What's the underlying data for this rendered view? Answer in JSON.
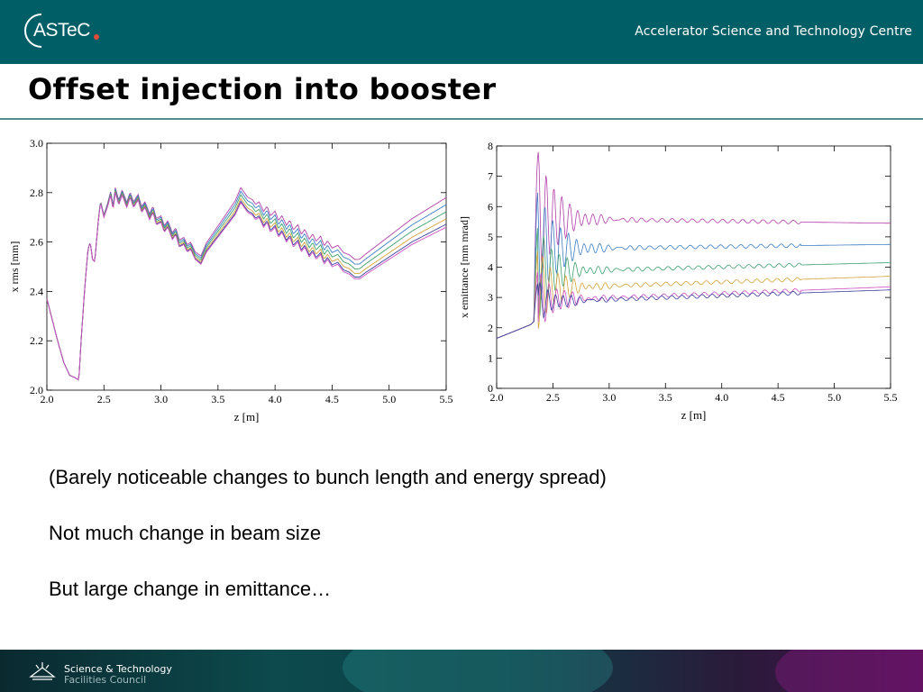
{
  "header": {
    "logo_text": "ASTeC",
    "org_name": "Accelerator Science and Technology Centre"
  },
  "slide": {
    "title": "Offset injection into booster",
    "bullets": [
      "(Barely noticeable changes to bunch length and energy spread)",
      "Not much change in beam size",
      "But large change in emittance…"
    ]
  },
  "footer": {
    "line1": "Science & Technology",
    "line2": "Facilities Council"
  },
  "chart_data": [
    {
      "type": "line",
      "title": "",
      "xlabel": "z [m]",
      "ylabel": "x rms [mm]",
      "xlim": [
        2.0,
        5.5
      ],
      "ylim": [
        2.0,
        3.0
      ],
      "xticks": [
        "2.0",
        "2.5",
        "3.0",
        "3.5",
        "4.0",
        "4.5",
        "5.0",
        "5.5"
      ],
      "yticks": [
        "2.0",
        "2.2",
        "2.4",
        "2.6",
        "2.8",
        "3.0"
      ],
      "grid": false,
      "base_curve": {
        "x": [
          2.0,
          2.05,
          2.1,
          2.15,
          2.2,
          2.25,
          2.28,
          2.3,
          2.33,
          2.36,
          2.38,
          2.4,
          2.42,
          2.45,
          2.47,
          2.5,
          2.53,
          2.56,
          2.58,
          2.6,
          2.63,
          2.66,
          2.7,
          2.73,
          2.76,
          2.8,
          2.83,
          2.86,
          2.9,
          2.93,
          2.96,
          3.0,
          3.03,
          3.06,
          3.1,
          3.13,
          3.16,
          3.2,
          3.23,
          3.26,
          3.3,
          3.35,
          3.4,
          3.45,
          3.5,
          3.55,
          3.6,
          3.65,
          3.7,
          3.73,
          3.76,
          3.8,
          3.83,
          3.86,
          3.9,
          3.93,
          3.96,
          4.0,
          4.03,
          4.06,
          4.1,
          4.13,
          4.16,
          4.2,
          4.23,
          4.26,
          4.3,
          4.33,
          4.36,
          4.4,
          4.43,
          4.46,
          4.5,
          4.55,
          4.6,
          4.65,
          4.7,
          4.74,
          4.8,
          5.0,
          5.2,
          5.5
        ],
        "y": [
          2.37,
          2.28,
          2.19,
          2.11,
          2.06,
          2.05,
          2.04,
          2.2,
          2.4,
          2.57,
          2.6,
          2.53,
          2.52,
          2.68,
          2.76,
          2.7,
          2.74,
          2.79,
          2.73,
          2.8,
          2.75,
          2.79,
          2.74,
          2.78,
          2.74,
          2.77,
          2.72,
          2.74,
          2.69,
          2.72,
          2.67,
          2.68,
          2.64,
          2.66,
          2.61,
          2.63,
          2.58,
          2.59,
          2.56,
          2.57,
          2.53,
          2.51,
          2.56,
          2.59,
          2.62,
          2.65,
          2.68,
          2.71,
          2.76,
          2.74,
          2.72,
          2.71,
          2.69,
          2.7,
          2.66,
          2.68,
          2.64,
          2.66,
          2.62,
          2.64,
          2.6,
          2.62,
          2.58,
          2.6,
          2.56,
          2.58,
          2.54,
          2.56,
          2.53,
          2.55,
          2.51,
          2.53,
          2.5,
          2.51,
          2.48,
          2.47,
          2.45,
          2.45,
          2.47,
          2.53,
          2.59,
          2.66
        ]
      },
      "series": [
        {
          "color": "#b33fa8",
          "offset": 0.0,
          "spread": 1.0
        },
        {
          "color": "#3d7ec5",
          "offset": 0.0,
          "spread": 0.76
        },
        {
          "color": "#3ea06f",
          "offset": 0.0,
          "spread": 0.52
        },
        {
          "color": "#d4a23c",
          "offset": 0.0,
          "spread": 0.28
        },
        {
          "color": "#3a3f9c",
          "offset": 0.0,
          "spread": 0.1
        },
        {
          "color": "#cc4fc0",
          "offset": 0.0,
          "spread": 0.0
        }
      ],
      "spread_curve": {
        "x": [
          2.0,
          2.3,
          2.4,
          2.6,
          3.3,
          3.7,
          4.2,
          4.74,
          5.5
        ],
        "y": [
          0.0,
          0.0,
          0.0,
          0.02,
          0.03,
          0.06,
          0.07,
          0.08,
          0.12
        ]
      }
    },
    {
      "type": "line",
      "title": "",
      "xlabel": "z [m]",
      "ylabel": "x emittance [mm mrad]",
      "xlim": [
        2.0,
        5.5
      ],
      "ylim": [
        0,
        8
      ],
      "xticks": [
        "2.0",
        "2.5",
        "3.0",
        "3.5",
        "4.0",
        "4.5",
        "5.0",
        "5.5"
      ],
      "yticks": [
        "0",
        "1",
        "2",
        "3",
        "4",
        "5",
        "6",
        "7",
        "8"
      ],
      "grid": false,
      "series": [
        {
          "color": "#b33fa8",
          "start": 5.6,
          "end": 5.45,
          "peak": 7.8
        },
        {
          "color": "#3d7ec5",
          "start": 4.6,
          "end": 4.75,
          "peak": 6.6
        },
        {
          "color": "#3ea06f",
          "start": 3.85,
          "end": 4.15,
          "peak": 5.4
        },
        {
          "color": "#d4a23c",
          "start": 3.3,
          "end": 3.7,
          "peak": 4.6
        },
        {
          "color": "#cc4fc0",
          "start": 2.9,
          "end": 3.35,
          "peak": 3.9
        },
        {
          "color": "#3a3f9c",
          "start": 2.85,
          "end": 3.25,
          "peak": 3.5
        }
      ],
      "ramp": {
        "x": [
          2.0,
          2.1,
          2.2,
          2.3,
          2.33
        ],
        "y": [
          1.65,
          1.8,
          1.95,
          2.1,
          2.2
        ]
      }
    }
  ]
}
